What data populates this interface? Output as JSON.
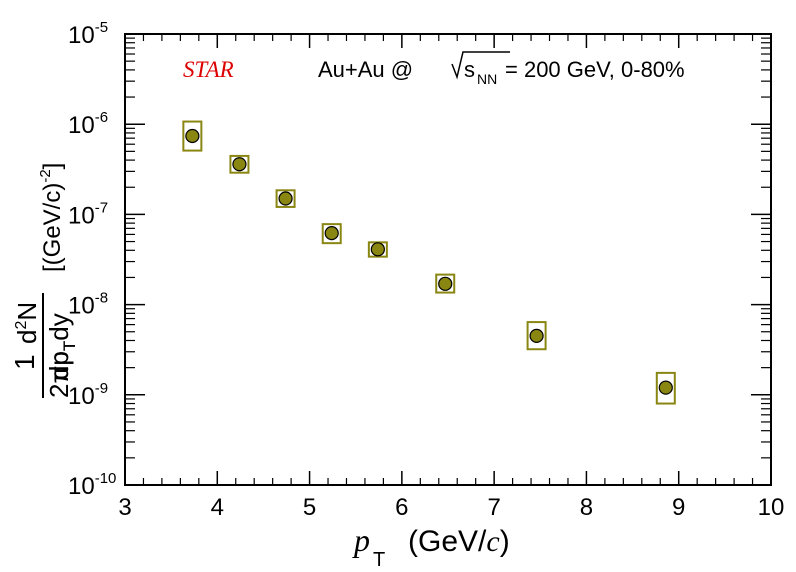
{
  "chart_data": {
    "type": "scatter",
    "xlabel_var": "p",
    "xlabel_sub": "T",
    "xlabel_unit_pre": "(GeV/",
    "xlabel_unit_var": "c",
    "xlabel_unit_post": ")",
    "ylabel_frac_num": "1",
    "ylabel_frac_den": "2πp",
    "ylabel_frac_den_sub": "T",
    "ylabel_deriv_num_pre": "d",
    "ylabel_deriv_num_sup": "2",
    "ylabel_deriv_num_post": "N",
    "ylabel_deriv_den_a": "dp",
    "ylabel_deriv_den_sub": "T",
    "ylabel_deriv_den_b": "dy",
    "ylabel_unit_pre": "[(GeV/c)",
    "ylabel_unit_sup": "-2",
    "ylabel_unit_post": "]",
    "annotation_experiment": "STAR",
    "annotation_system_pre": "Au+Au @ ",
    "annotation_system_s": "s",
    "annotation_system_sub": "NN",
    "annotation_system_post": " = 200 GeV, 0-80%",
    "xlim": [
      3,
      10
    ],
    "ylim": [
      1e-10,
      1e-05
    ],
    "y_scale": "log",
    "x_ticks": [
      "3",
      "4",
      "5",
      "6",
      "7",
      "8",
      "9",
      "10"
    ],
    "y_ticks": [
      {
        "base": "10",
        "exp": "-10"
      },
      {
        "base": "10",
        "exp": "-9"
      },
      {
        "base": "10",
        "exp": "-8"
      },
      {
        "base": "10",
        "exp": "-7"
      },
      {
        "base": "10",
        "exp": "-6"
      },
      {
        "base": "10",
        "exp": "-5"
      }
    ],
    "grid": false,
    "legend": "none",
    "series": [
      {
        "x": [
          3.73,
          4.24,
          4.74,
          5.24,
          5.74,
          6.47,
          7.46,
          8.86
        ],
        "y": [
          7.4e-07,
          3.6e-07,
          1.5e-07,
          6.2e-08,
          4.1e-08,
          1.7e-08,
          4.5e-09,
          1.2e-09
        ],
        "syst_low": [
          5.1e-07,
          2.9e-07,
          1.21e-07,
          4.8e-08,
          3.4e-08,
          1.36e-08,
          3.2e-09,
          8e-10
        ],
        "syst_high": [
          1.07e-06,
          4.45e-07,
          1.85e-07,
          7.8e-08,
          4.9e-08,
          2.15e-08,
          6.4e-09,
          1.75e-09
        ]
      }
    ],
    "colors": {
      "marker_fill": "#8a8612",
      "marker_stroke": "#000000",
      "syst_box": "#8a8612",
      "experiment_label": "#dd0000",
      "axis": "#000000"
    }
  }
}
